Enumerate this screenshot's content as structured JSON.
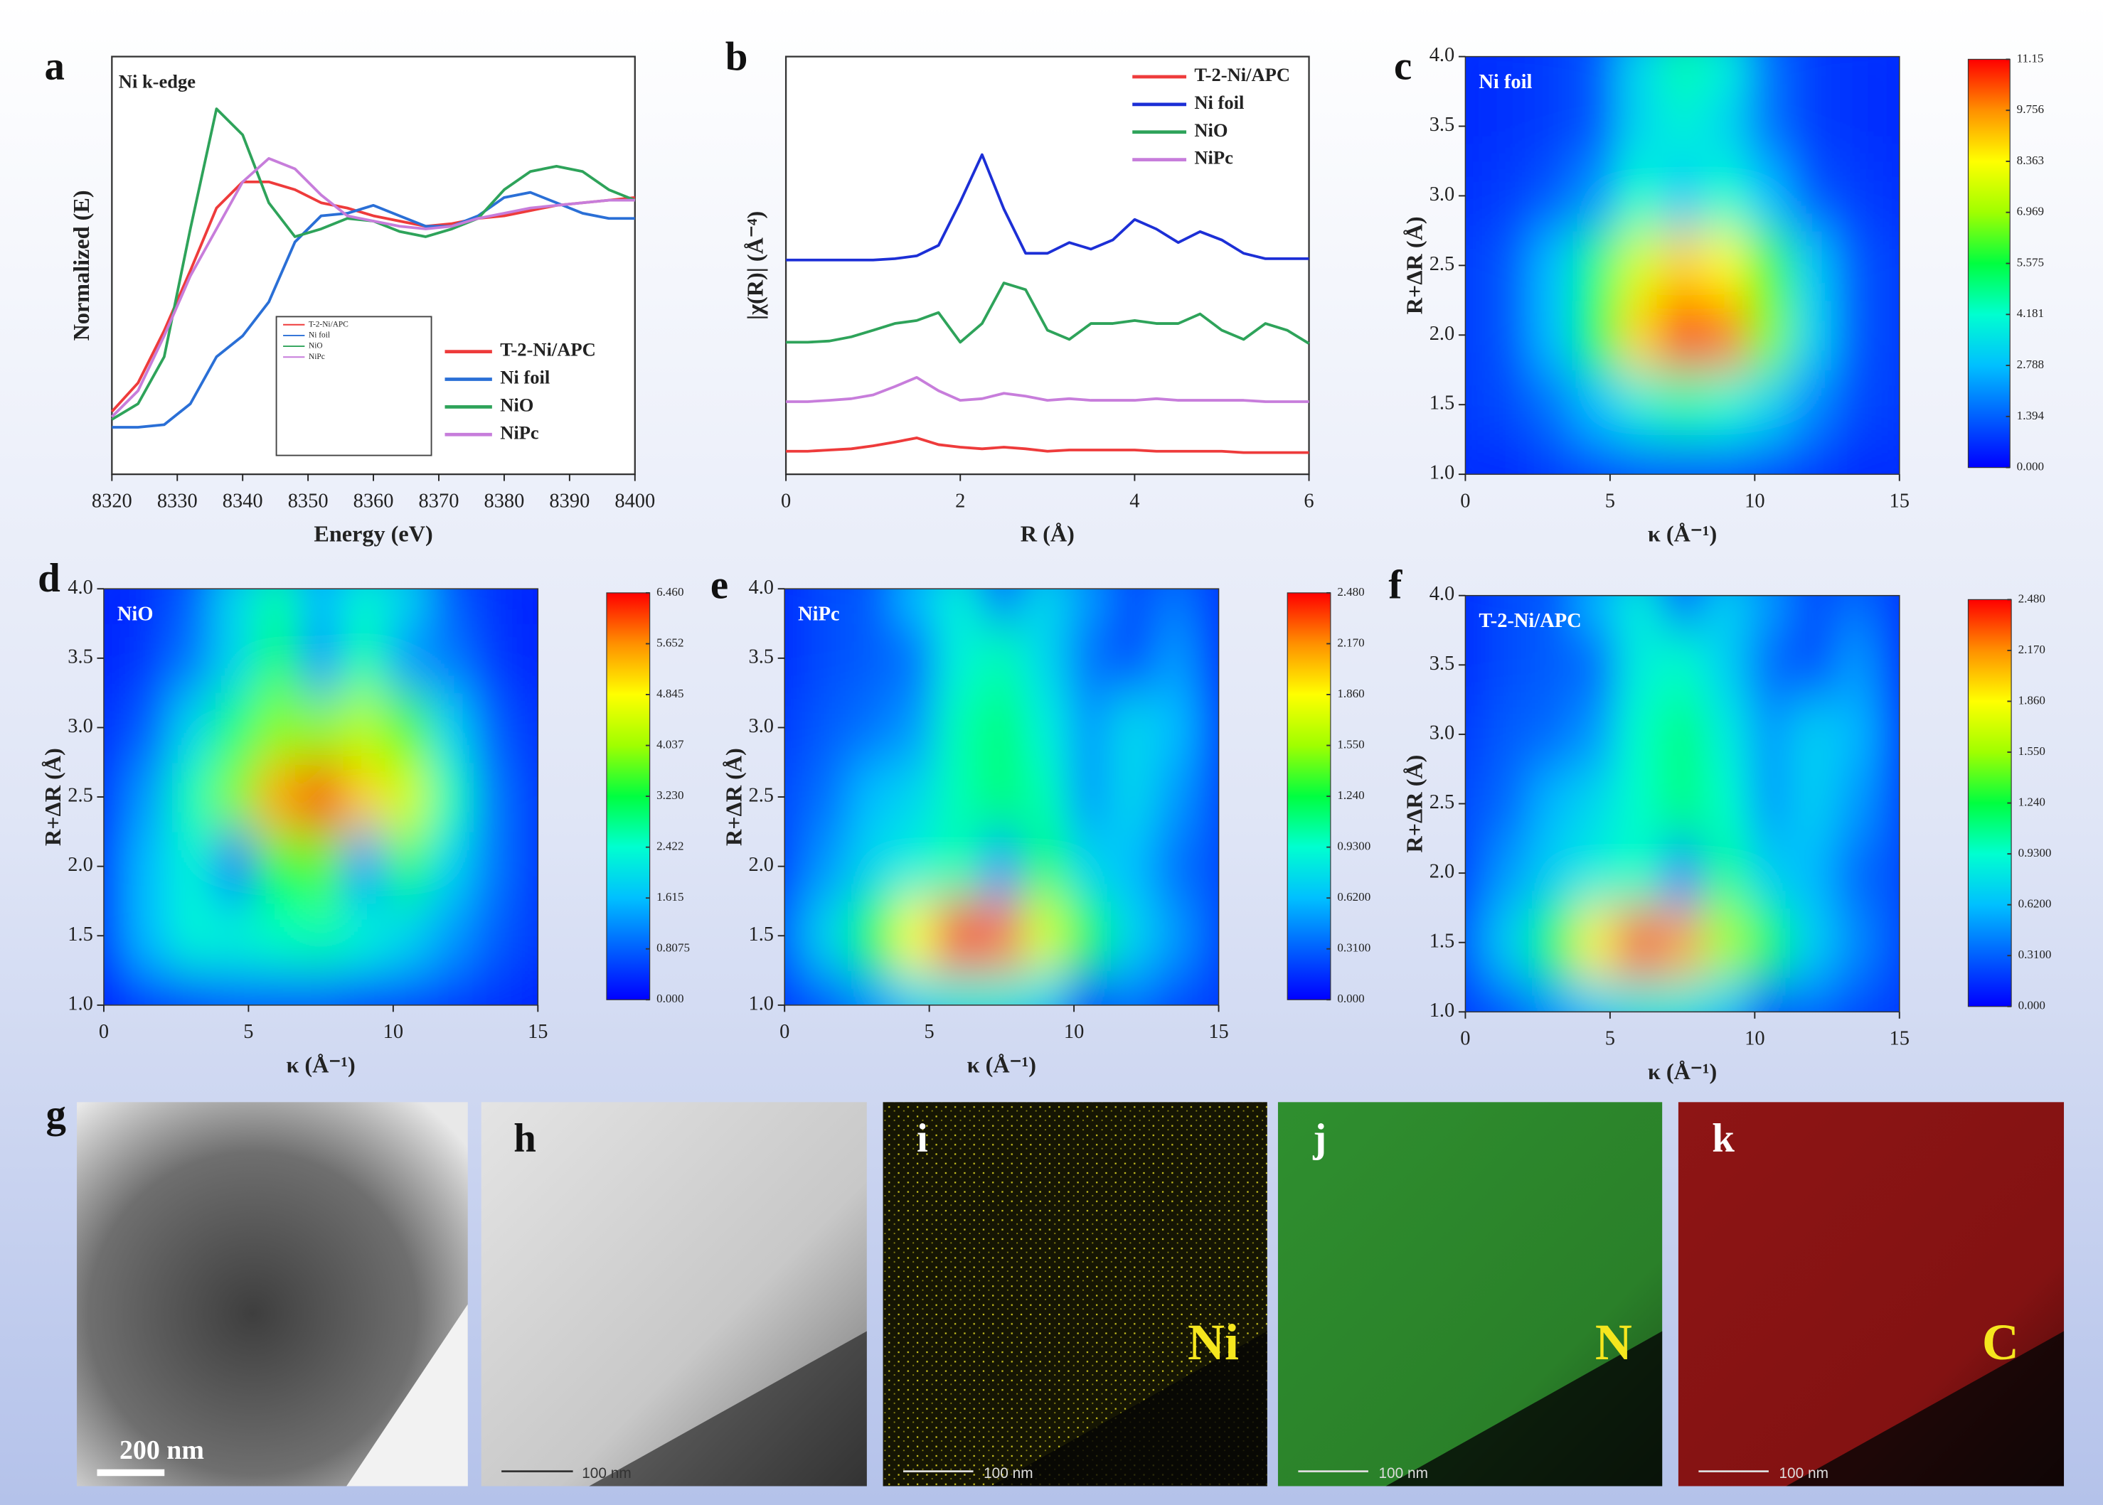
{
  "chart_data": [
    {
      "type": "line",
      "panel": "a",
      "annotation": "Ni k-edge",
      "xlabel": "Energy (eV)",
      "ylabel": "Normalized (E)",
      "x": [
        8320,
        8324,
        8328,
        8332,
        8336,
        8340,
        8344,
        8348,
        8352,
        8356,
        8360,
        8364,
        8368,
        8372,
        8376,
        8380,
        8384,
        8388,
        8392,
        8396,
        8400
      ],
      "xlim": [
        8320,
        8400
      ],
      "xticks": [
        8320,
        8330,
        8340,
        8350,
        8360,
        8370,
        8380,
        8390,
        8400
      ],
      "ylim": [
        0,
        1.6
      ],
      "legend": "lower right",
      "inset_legend": true,
      "series": [
        {
          "name": "T-2-Ni/APC",
          "color": "#ee3b3b",
          "values": [
            0.24,
            0.35,
            0.55,
            0.78,
            1.02,
            1.12,
            1.12,
            1.09,
            1.04,
            1.02,
            0.99,
            0.97,
            0.95,
            0.96,
            0.98,
            0.99,
            1.01,
            1.03,
            1.04,
            1.05,
            1.06
          ]
        },
        {
          "name": "Ni foil",
          "color": "#2a6fd6",
          "values": [
            0.18,
            0.18,
            0.19,
            0.27,
            0.45,
            0.53,
            0.66,
            0.89,
            0.99,
            1.0,
            1.03,
            0.99,
            0.95,
            0.95,
            0.99,
            1.06,
            1.08,
            1.04,
            1.0,
            0.98,
            0.98
          ]
        },
        {
          "name": "NiO",
          "color": "#2ea35a",
          "values": [
            0.21,
            0.27,
            0.45,
            0.94,
            1.4,
            1.3,
            1.04,
            0.91,
            0.94,
            0.98,
            0.97,
            0.93,
            0.91,
            0.94,
            0.98,
            1.09,
            1.16,
            1.18,
            1.16,
            1.09,
            1.05
          ]
        },
        {
          "name": "NiPc",
          "color": "#c77ddb",
          "values": [
            0.22,
            0.32,
            0.53,
            0.76,
            0.94,
            1.12,
            1.21,
            1.17,
            1.07,
            0.99,
            0.97,
            0.95,
            0.94,
            0.95,
            0.98,
            1.0,
            1.02,
            1.03,
            1.04,
            1.05,
            1.05
          ]
        }
      ]
    },
    {
      "type": "line",
      "panel": "b",
      "xlabel": "R (Å)",
      "ylabel": "|χ(R)| (Å⁻⁴)",
      "x": [
        0,
        0.25,
        0.5,
        0.75,
        1,
        1.25,
        1.5,
        1.75,
        2,
        2.25,
        2.5,
        2.75,
        3,
        3.25,
        3.5,
        3.75,
        4,
        4.25,
        4.5,
        4.75,
        5,
        5.25,
        5.5,
        5.75,
        6
      ],
      "xlim": [
        0,
        6
      ],
      "xticks": [
        0,
        2,
        4,
        6
      ],
      "ylim": [
        0,
        10
      ],
      "legend": "upper right",
      "series": [
        {
          "name": "T-2-Ni/APC",
          "color": "#ee3b3b",
          "values": [
            0.55,
            0.55,
            0.58,
            0.61,
            0.68,
            0.77,
            0.87,
            0.71,
            0.65,
            0.61,
            0.65,
            0.61,
            0.55,
            0.58,
            0.58,
            0.58,
            0.58,
            0.55,
            0.55,
            0.55,
            0.55,
            0.52,
            0.52,
            0.52,
            0.52
          ]
        },
        {
          "name": "Ni foil",
          "color": "#1c2fd6",
          "values": [
            5.13,
            5.13,
            5.13,
            5.13,
            5.13,
            5.16,
            5.23,
            5.48,
            6.52,
            7.65,
            6.35,
            5.29,
            5.29,
            5.55,
            5.39,
            5.61,
            6.1,
            5.87,
            5.55,
            5.81,
            5.61,
            5.29,
            5.16,
            5.16,
            5.16
          ]
        },
        {
          "name": "NiO",
          "color": "#2ea35a",
          "values": [
            3.16,
            3.16,
            3.19,
            3.29,
            3.45,
            3.61,
            3.68,
            3.87,
            3.16,
            3.61,
            4.58,
            4.42,
            3.45,
            3.23,
            3.61,
            3.61,
            3.68,
            3.61,
            3.61,
            3.84,
            3.45,
            3.23,
            3.61,
            3.45,
            3.13
          ]
        },
        {
          "name": "NiPc",
          "color": "#c77ddb",
          "values": [
            1.74,
            1.74,
            1.77,
            1.81,
            1.9,
            2.1,
            2.32,
            2.0,
            1.77,
            1.81,
            1.94,
            1.87,
            1.77,
            1.81,
            1.77,
            1.77,
            1.77,
            1.81,
            1.77,
            1.77,
            1.77,
            1.77,
            1.74,
            1.74,
            1.74
          ]
        }
      ]
    },
    {
      "type": "heatmap",
      "panel": "c",
      "annotation": "Ni foil",
      "xlabel": "κ (Å⁻¹)",
      "ylabel": "R+ΔR (Å)",
      "x": [
        0,
        1.5,
        3,
        4.5,
        6,
        7.5,
        9,
        10.5,
        12,
        13.5,
        15
      ],
      "y": [
        1,
        1.5,
        2,
        2.5,
        3,
        3.5,
        4
      ],
      "xlim": [
        0,
        15
      ],
      "ylim": [
        1,
        4
      ],
      "xticks": [
        0,
        5,
        10,
        15
      ],
      "yticks": [
        {
          "value": 1,
          "label": "1.0"
        },
        1.5,
        {
          "value": 2,
          "label": "2.0"
        },
        2.5,
        {
          "value": 3,
          "label": "3.0"
        },
        3.5,
        {
          "value": 4,
          "label": "4.0"
        }
      ],
      "zlim": [
        0,
        11.15
      ],
      "zticks": [
        {
          "value": 0,
          "label": "0.000"
        },
        1.394,
        2.788,
        4.181,
        5.575,
        6.969,
        8.363,
        9.756,
        11.15
      ],
      "colors": [
        "#0000ff",
        "#0060ff",
        "#00c0ff",
        "#00ffd0",
        "#00ff40",
        "#a0ff00",
        "#ffff00",
        "#ff9000",
        "#ff0000"
      ],
      "z": [
        [
          0.6,
          0.6,
          0.9,
          1.1,
          1.3,
          1.3,
          1.3,
          1.1,
          0.9,
          0.6,
          0.6
        ],
        [
          0.9,
          1.1,
          1.7,
          2.8,
          3.9,
          4.5,
          4.2,
          3.3,
          2.0,
          1.1,
          0.9
        ],
        [
          0.9,
          1.3,
          2.8,
          5.6,
          8.9,
          10.6,
          10.0,
          6.7,
          3.3,
          1.3,
          0.9
        ],
        [
          0.9,
          1.3,
          2.8,
          5.0,
          7.8,
          8.9,
          8.4,
          6.1,
          3.1,
          1.3,
          0.9
        ],
        [
          0.7,
          0.9,
          1.3,
          2.2,
          4.2,
          3.0,
          4.2,
          2.8,
          1.3,
          0.9,
          0.7
        ],
        [
          0.6,
          0.7,
          0.9,
          1.3,
          3.3,
          3.9,
          3.3,
          1.7,
          0.9,
          0.7,
          0.6
        ],
        [
          0.6,
          0.7,
          0.9,
          1.3,
          3.3,
          4.5,
          3.9,
          1.7,
          0.9,
          0.7,
          0.6
        ]
      ]
    },
    {
      "type": "heatmap",
      "panel": "d",
      "annotation": "NiO",
      "xlabel": "κ (Å⁻¹)",
      "ylabel": "R+ΔR (Å)",
      "x": [
        0,
        1.5,
        3,
        4.5,
        6,
        7.5,
        9,
        10.5,
        12,
        13.5,
        15
      ],
      "y": [
        1,
        1.5,
        2,
        2.5,
        3,
        3.5,
        4
      ],
      "xlim": [
        0,
        15
      ],
      "ylim": [
        1,
        4
      ],
      "xticks": [
        0,
        5,
        10,
        15
      ],
      "yticks": [
        {
          "value": 1,
          "label": "1.0"
        },
        1.5,
        {
          "value": 2,
          "label": "2.0"
        },
        2.5,
        {
          "value": 3,
          "label": "3.0"
        },
        3.5,
        {
          "value": 4,
          "label": "4.0"
        }
      ],
      "zlim": [
        0,
        6.46
      ],
      "zticks": [
        {
          "value": 0,
          "label": "0.000"
        },
        0.8075,
        1.615,
        2.422,
        {
          "value": 3.23,
          "label": "3.230"
        },
        4.037,
        4.845,
        5.652,
        {
          "value": 6.46,
          "label": "6.460"
        }
      ],
      "colors": [
        "#0000ff",
        "#0060ff",
        "#00c0ff",
        "#00ffd0",
        "#00ff40",
        "#a0ff00",
        "#ffff00",
        "#ff9000",
        "#ff0000"
      ],
      "z": [
        [
          0.3,
          0.5,
          0.6,
          0.8,
          0.8,
          0.8,
          0.6,
          0.6,
          0.5,
          0.4,
          0.3
        ],
        [
          0.6,
          1.6,
          2.3,
          2.3,
          2.5,
          2.6,
          2.3,
          1.9,
          1.3,
          0.8,
          0.5
        ],
        [
          0.6,
          1.6,
          2.3,
          1.0,
          3.2,
          3.6,
          1.3,
          2.9,
          1.9,
          1.0,
          0.5
        ],
        [
          0.5,
          1.3,
          2.6,
          3.9,
          5.5,
          6.1,
          5.2,
          4.5,
          2.6,
          1.0,
          0.5
        ],
        [
          0.4,
          0.8,
          1.9,
          2.9,
          3.9,
          3.9,
          4.2,
          3.6,
          1.9,
          0.8,
          0.4
        ],
        [
          0.3,
          0.5,
          1.0,
          1.9,
          2.9,
          1.3,
          2.6,
          1.3,
          1.0,
          0.5,
          0.3
        ],
        [
          0.3,
          0.4,
          0.8,
          1.9,
          2.6,
          1.6,
          2.3,
          1.9,
          0.8,
          0.4,
          0.3
        ]
      ]
    },
    {
      "type": "heatmap",
      "panel": "e",
      "annotation": "NiPc",
      "xlabel": "κ (Å⁻¹)",
      "ylabel": "R+ΔR (Å)",
      "x": [
        0,
        1.5,
        3,
        4.5,
        6,
        7.5,
        9,
        10.5,
        12,
        13.5,
        15
      ],
      "y": [
        1,
        1.5,
        2,
        2.5,
        3,
        3.5,
        4
      ],
      "xlim": [
        0,
        15
      ],
      "ylim": [
        1,
        4
      ],
      "xticks": [
        0,
        5,
        10,
        15
      ],
      "yticks": [
        {
          "value": 1,
          "label": "1.0"
        },
        1.5,
        {
          "value": 2,
          "label": "2.0"
        },
        2.5,
        {
          "value": 3,
          "label": "3.0"
        },
        3.5,
        {
          "value": 4,
          "label": "4.0"
        }
      ],
      "zlim": [
        0,
        2.48
      ],
      "zticks": [
        {
          "value": 0,
          "label": "0.000"
        },
        {
          "value": 0.31,
          "label": "0.3100"
        },
        {
          "value": 0.62,
          "label": "0.6200"
        },
        {
          "value": 0.93,
          "label": "0.9300"
        },
        {
          "value": 1.24,
          "label": "1.240"
        },
        {
          "value": 1.55,
          "label": "1.550"
        },
        {
          "value": 1.86,
          "label": "1.860"
        },
        {
          "value": 2.17,
          "label": "2.170"
        },
        {
          "value": 2.48,
          "label": "2.480"
        }
      ],
      "colors": [
        "#0000ff",
        "#0060ff",
        "#00c0ff",
        "#00ffd0",
        "#00ff40",
        "#a0ff00",
        "#ffff00",
        "#ff9000",
        "#ff0000"
      ],
      "z": [
        [
          0.2,
          0.3,
          0.5,
          0.74,
          0.87,
          0.87,
          0.74,
          0.25,
          0.37,
          0.25,
          0.2
        ],
        [
          0.37,
          0.74,
          1.24,
          1.86,
          2.36,
          2.23,
          1.74,
          1.24,
          0.74,
          0.5,
          0.25
        ],
        [
          0.25,
          0.5,
          0.74,
          0.87,
          0.99,
          0.5,
          1.12,
          0.74,
          0.62,
          0.37,
          0.25
        ],
        [
          0.25,
          0.37,
          0.62,
          0.74,
          0.99,
          1.12,
          0.99,
          0.5,
          0.74,
          0.5,
          0.25
        ],
        [
          0.2,
          0.3,
          0.37,
          0.5,
          0.99,
          1.12,
          0.87,
          0.5,
          0.74,
          0.62,
          0.25
        ],
        [
          0.15,
          0.25,
          0.3,
          0.37,
          0.87,
          0.99,
          0.74,
          0.37,
          0.25,
          0.5,
          0.2
        ],
        [
          0.15,
          0.25,
          0.3,
          0.62,
          0.87,
          0.37,
          0.74,
          0.5,
          0.25,
          0.37,
          0.2
        ]
      ]
    },
    {
      "type": "heatmap",
      "panel": "f",
      "annotation": "T-2-Ni/APC",
      "xlabel": "κ (Å⁻¹)",
      "ylabel": "R+ΔR (Å)",
      "x": [
        0,
        1.5,
        3,
        4.5,
        6,
        7.5,
        9,
        10.5,
        12,
        13.5,
        15
      ],
      "y": [
        1,
        1.5,
        2,
        2.5,
        3,
        3.5,
        4
      ],
      "xlim": [
        0,
        15
      ],
      "ylim": [
        1,
        4
      ],
      "xticks": [
        0,
        5,
        10,
        15
      ],
      "yticks": [
        {
          "value": 1,
          "label": "1.0"
        },
        1.5,
        {
          "value": 2,
          "label": "2.0"
        },
        2.5,
        {
          "value": 3,
          "label": "3.0"
        },
        3.5,
        {
          "value": 4,
          "label": "4.0"
        }
      ],
      "zlim": [
        0,
        2.48
      ],
      "zticks": [
        {
          "value": 0,
          "label": "0.000"
        },
        {
          "value": 0.31,
          "label": "0.3100"
        },
        {
          "value": 0.62,
          "label": "0.6200"
        },
        {
          "value": 0.93,
          "label": "0.9300"
        },
        {
          "value": 1.24,
          "label": "1.240"
        },
        {
          "value": 1.55,
          "label": "1.550"
        },
        {
          "value": 1.86,
          "label": "1.860"
        },
        {
          "value": 2.17,
          "label": "2.170"
        },
        {
          "value": 2.48,
          "label": "2.480"
        }
      ],
      "colors": [
        "#0000ff",
        "#0060ff",
        "#00c0ff",
        "#00ffd0",
        "#00ff40",
        "#a0ff00",
        "#ffff00",
        "#ff9000",
        "#ff0000"
      ],
      "z": [
        [
          0.2,
          0.3,
          0.5,
          0.7,
          0.85,
          0.85,
          0.7,
          0.3,
          0.35,
          0.25,
          0.2
        ],
        [
          0.35,
          0.7,
          1.2,
          1.9,
          2.3,
          2.1,
          1.6,
          1.2,
          0.7,
          0.45,
          0.25
        ],
        [
          0.25,
          0.5,
          0.7,
          0.85,
          0.95,
          0.45,
          1.05,
          0.7,
          0.6,
          0.35,
          0.25
        ],
        [
          0.25,
          0.35,
          0.6,
          0.75,
          0.95,
          1.1,
          0.95,
          0.5,
          0.7,
          0.5,
          0.25
        ],
        [
          0.2,
          0.3,
          0.35,
          0.5,
          0.95,
          1.1,
          0.85,
          0.5,
          0.7,
          0.6,
          0.25
        ],
        [
          0.15,
          0.25,
          0.3,
          0.35,
          0.85,
          0.95,
          0.7,
          0.35,
          0.25,
          0.5,
          0.2
        ],
        [
          0.15,
          0.25,
          0.3,
          0.6,
          0.85,
          0.35,
          0.7,
          0.5,
          0.25,
          0.35,
          0.2
        ]
      ]
    }
  ],
  "images": [
    {
      "panel": "g",
      "scale_bar": "200 nm"
    },
    {
      "panel": "h",
      "scale_bar": "100 nm"
    },
    {
      "panel": "i",
      "scale_bar": "100 nm",
      "element": "Ni"
    },
    {
      "panel": "j",
      "scale_bar": "100 nm",
      "element": "N"
    },
    {
      "panel": "k",
      "scale_bar": "100 nm",
      "element": "C"
    }
  ]
}
